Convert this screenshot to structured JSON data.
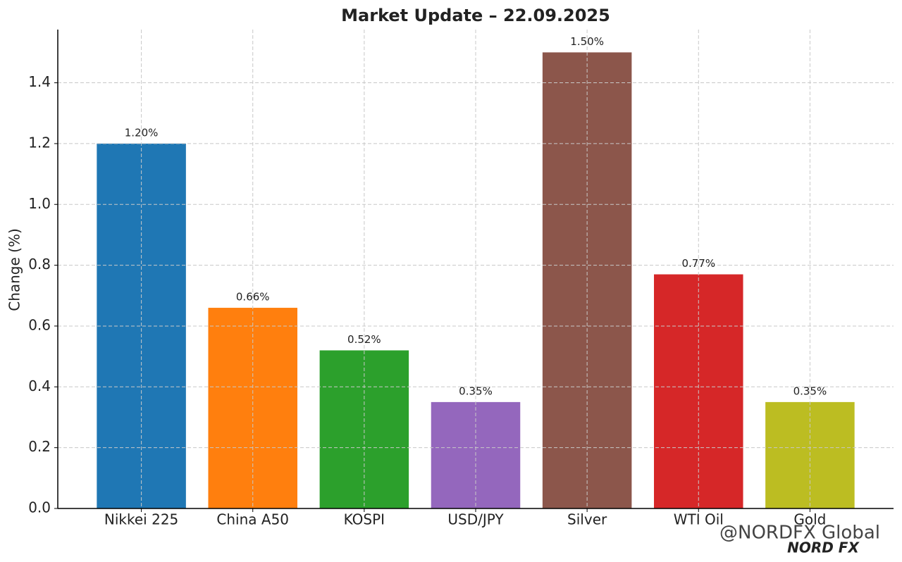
{
  "chart_data": {
    "type": "bar",
    "title": "Market Update – 22.09.2025",
    "ylabel": "Change (%)",
    "categories": [
      "Nikkei 225",
      "China A50",
      "KOSPI",
      "USD/JPY",
      "Silver",
      "WTI Oil",
      "Gold"
    ],
    "values": [
      1.2,
      0.66,
      0.52,
      0.35,
      1.5,
      0.77,
      0.35
    ],
    "value_labels": [
      "1.20%",
      "0.66%",
      "0.52%",
      "0.35%",
      "1.50%",
      "0.77%",
      "0.35%"
    ],
    "colors": [
      "#1f77b4",
      "#ff7f0e",
      "#2ca02c",
      "#9467bd",
      "#8c564b",
      "#d62728",
      "#bcbd22"
    ],
    "ylim": [
      0,
      1.575
    ],
    "yticks": [
      {
        "value": 0,
        "label": "0.0"
      },
      0.2,
      0.4,
      0.6,
      0.8,
      {
        "value": 1,
        "label": "1.0"
      },
      1.2,
      1.4
    ],
    "grid": true,
    "annotations": [
      "@NORDFX Global",
      "NORD FX"
    ]
  }
}
